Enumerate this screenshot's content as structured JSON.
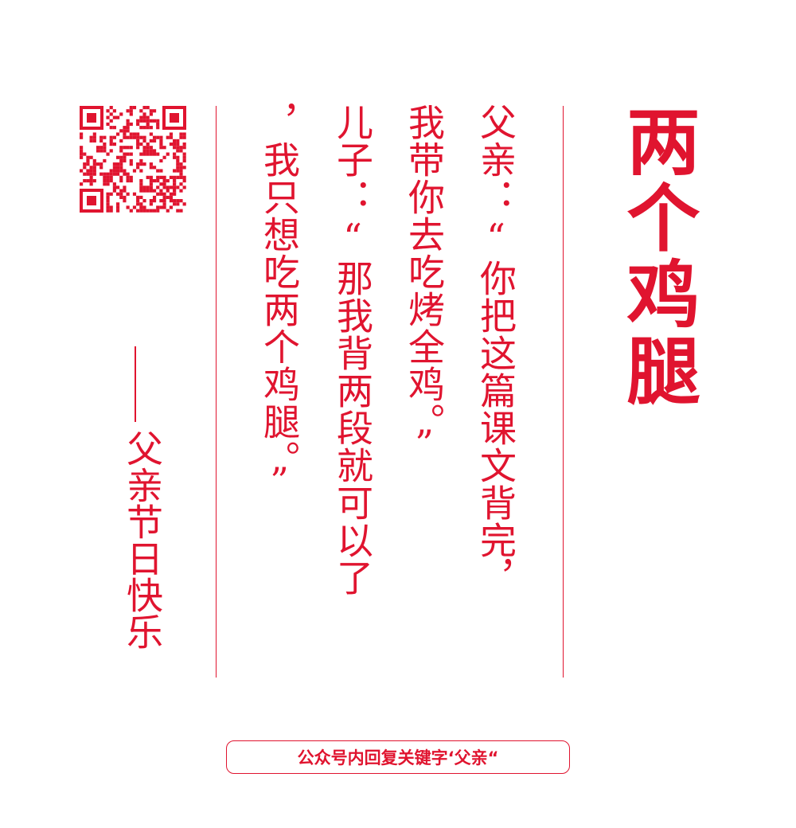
{
  "title": "两个鸡腿",
  "lines": [
    "父亲：“你把这篇课文背完，",
    "我带你去吃烤全鸡。”",
    "儿子：“那我背两段就可以了",
    "，我只想吃两个鸡腿。”"
  ],
  "signature": "——父亲节日快乐",
  "signature_text": "父亲节日快乐",
  "footer": "公众号内回复关键字‘父亲“",
  "accent_color": "#e0142f",
  "qr_icon": "qr-code-icon"
}
